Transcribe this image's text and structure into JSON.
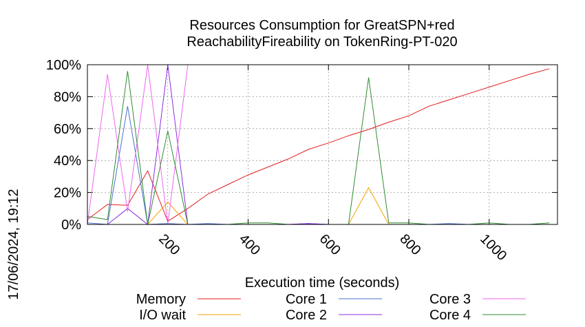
{
  "chart_data": {
    "type": "line",
    "title": [
      "Resources Consumption for GreatSPN+red",
      "ReachabilityFireability on TokenRing-PT-020"
    ],
    "xlabel": "Execution time (seconds)",
    "ylabel": "",
    "side_label": "17/06/2024, 19:12",
    "xlim": [
      0,
      1170
    ],
    "ylim": [
      0,
      100
    ],
    "x_ticks": [
      200,
      400,
      600,
      800,
      1000
    ],
    "y_ticks": [
      0,
      20,
      40,
      60,
      80,
      100
    ],
    "y_tick_labels": [
      "0%",
      "20%",
      "40%",
      "60%",
      "80%",
      "100%"
    ],
    "grid": true,
    "legend_position": "bottom",
    "series": [
      {
        "name": "Memory",
        "color": "#e41a1c",
        "points": [
          [
            0,
            3
          ],
          [
            50,
            12.5
          ],
          [
            100,
            12
          ],
          [
            150,
            33.5
          ],
          [
            200,
            2
          ],
          [
            250,
            10
          ],
          [
            300,
            19
          ],
          [
            350,
            25
          ],
          [
            400,
            31
          ],
          [
            450,
            36
          ],
          [
            500,
            41
          ],
          [
            550,
            47
          ],
          [
            600,
            51
          ],
          [
            650,
            55.5
          ],
          [
            700,
            59.5
          ],
          [
            750,
            64
          ],
          [
            800,
            68
          ],
          [
            850,
            74
          ],
          [
            900,
            78
          ],
          [
            950,
            82
          ],
          [
            1000,
            86
          ],
          [
            1050,
            90
          ],
          [
            1100,
            94
          ],
          [
            1150,
            97.5
          ]
        ]
      },
      {
        "name": "I/O wait",
        "color": "#f5a300",
        "points": [
          [
            0,
            0
          ],
          [
            50,
            0
          ],
          [
            100,
            0
          ],
          [
            150,
            0
          ],
          [
            200,
            14
          ],
          [
            250,
            0
          ],
          [
            300,
            0
          ],
          [
            350,
            0
          ],
          [
            400,
            0
          ],
          [
            450,
            0
          ],
          [
            500,
            0
          ],
          [
            550,
            0
          ],
          [
            600,
            0
          ],
          [
            650,
            0
          ],
          [
            700,
            23
          ],
          [
            750,
            0
          ],
          [
            800,
            0
          ],
          [
            850,
            0
          ],
          [
            900,
            0
          ],
          [
            950,
            0
          ],
          [
            1000,
            0
          ],
          [
            1050,
            0
          ],
          [
            1100,
            0
          ],
          [
            1150,
            0
          ]
        ]
      },
      {
        "name": "Core 1",
        "color": "#4a6fd0",
        "points": [
          [
            0,
            1
          ],
          [
            50,
            0
          ],
          [
            100,
            74
          ],
          [
            150,
            0
          ],
          [
            200,
            0.5
          ],
          [
            250,
            0
          ],
          [
            300,
            0.5
          ],
          [
            350,
            0
          ],
          [
            400,
            0
          ],
          [
            450,
            0
          ],
          [
            500,
            0
          ],
          [
            550,
            0.5
          ],
          [
            600,
            0
          ],
          [
            650,
            0
          ],
          [
            700,
            0
          ],
          [
            750,
            0
          ],
          [
            800,
            0
          ],
          [
            850,
            0
          ],
          [
            900,
            0.5
          ],
          [
            950,
            0
          ],
          [
            1000,
            0
          ],
          [
            1050,
            0
          ],
          [
            1100,
            0
          ],
          [
            1150,
            0
          ]
        ]
      },
      {
        "name": "Core 2",
        "color": "#8b2be2",
        "points": [
          [
            0,
            0
          ],
          [
            50,
            0
          ],
          [
            100,
            10
          ],
          [
            150,
            0
          ],
          [
            200,
            100
          ],
          [
            250,
            0
          ],
          [
            300,
            0
          ],
          [
            350,
            0
          ],
          [
            400,
            0
          ],
          [
            450,
            0
          ],
          [
            500,
            0
          ],
          [
            550,
            0.5
          ],
          [
            600,
            0
          ],
          [
            650,
            0
          ],
          [
            700,
            0
          ],
          [
            750,
            0
          ],
          [
            800,
            0
          ],
          [
            850,
            0
          ],
          [
            900,
            0
          ],
          [
            950,
            0
          ],
          [
            1000,
            0
          ],
          [
            1050,
            0
          ],
          [
            1100,
            0
          ],
          [
            1150,
            0
          ]
        ]
      },
      {
        "name": "Core 3",
        "color": "#ee66ee",
        "points": [
          [
            0,
            0
          ],
          [
            50,
            94
          ],
          [
            100,
            8
          ],
          [
            150,
            100
          ],
          [
            200,
            0
          ],
          [
            250,
            100
          ],
          [
            300,
            100
          ],
          [
            350,
            100
          ],
          [
            400,
            100
          ],
          [
            450,
            100
          ],
          [
            500,
            100
          ],
          [
            550,
            100
          ],
          [
            600,
            100
          ],
          [
            650,
            100
          ],
          [
            700,
            100
          ],
          [
            750,
            100
          ],
          [
            800,
            100
          ],
          [
            850,
            100
          ],
          [
            900,
            100
          ],
          [
            950,
            100
          ],
          [
            1000,
            100
          ],
          [
            1050,
            100
          ],
          [
            1100,
            100
          ],
          [
            1150,
            100
          ]
        ]
      },
      {
        "name": "Core 4",
        "color": "#2e8b2e",
        "points": [
          [
            0,
            5
          ],
          [
            50,
            3
          ],
          [
            100,
            96
          ],
          [
            150,
            0
          ],
          [
            200,
            58.5
          ],
          [
            250,
            0
          ],
          [
            300,
            0
          ],
          [
            350,
            0
          ],
          [
            400,
            1
          ],
          [
            450,
            1
          ],
          [
            500,
            0
          ],
          [
            550,
            0
          ],
          [
            600,
            0
          ],
          [
            650,
            0
          ],
          [
            700,
            92
          ],
          [
            750,
            1
          ],
          [
            800,
            1
          ],
          [
            850,
            0
          ],
          [
            900,
            0
          ],
          [
            950,
            0
          ],
          [
            1000,
            1
          ],
          [
            1050,
            0
          ],
          [
            1100,
            0
          ],
          [
            1150,
            1
          ]
        ]
      }
    ]
  }
}
